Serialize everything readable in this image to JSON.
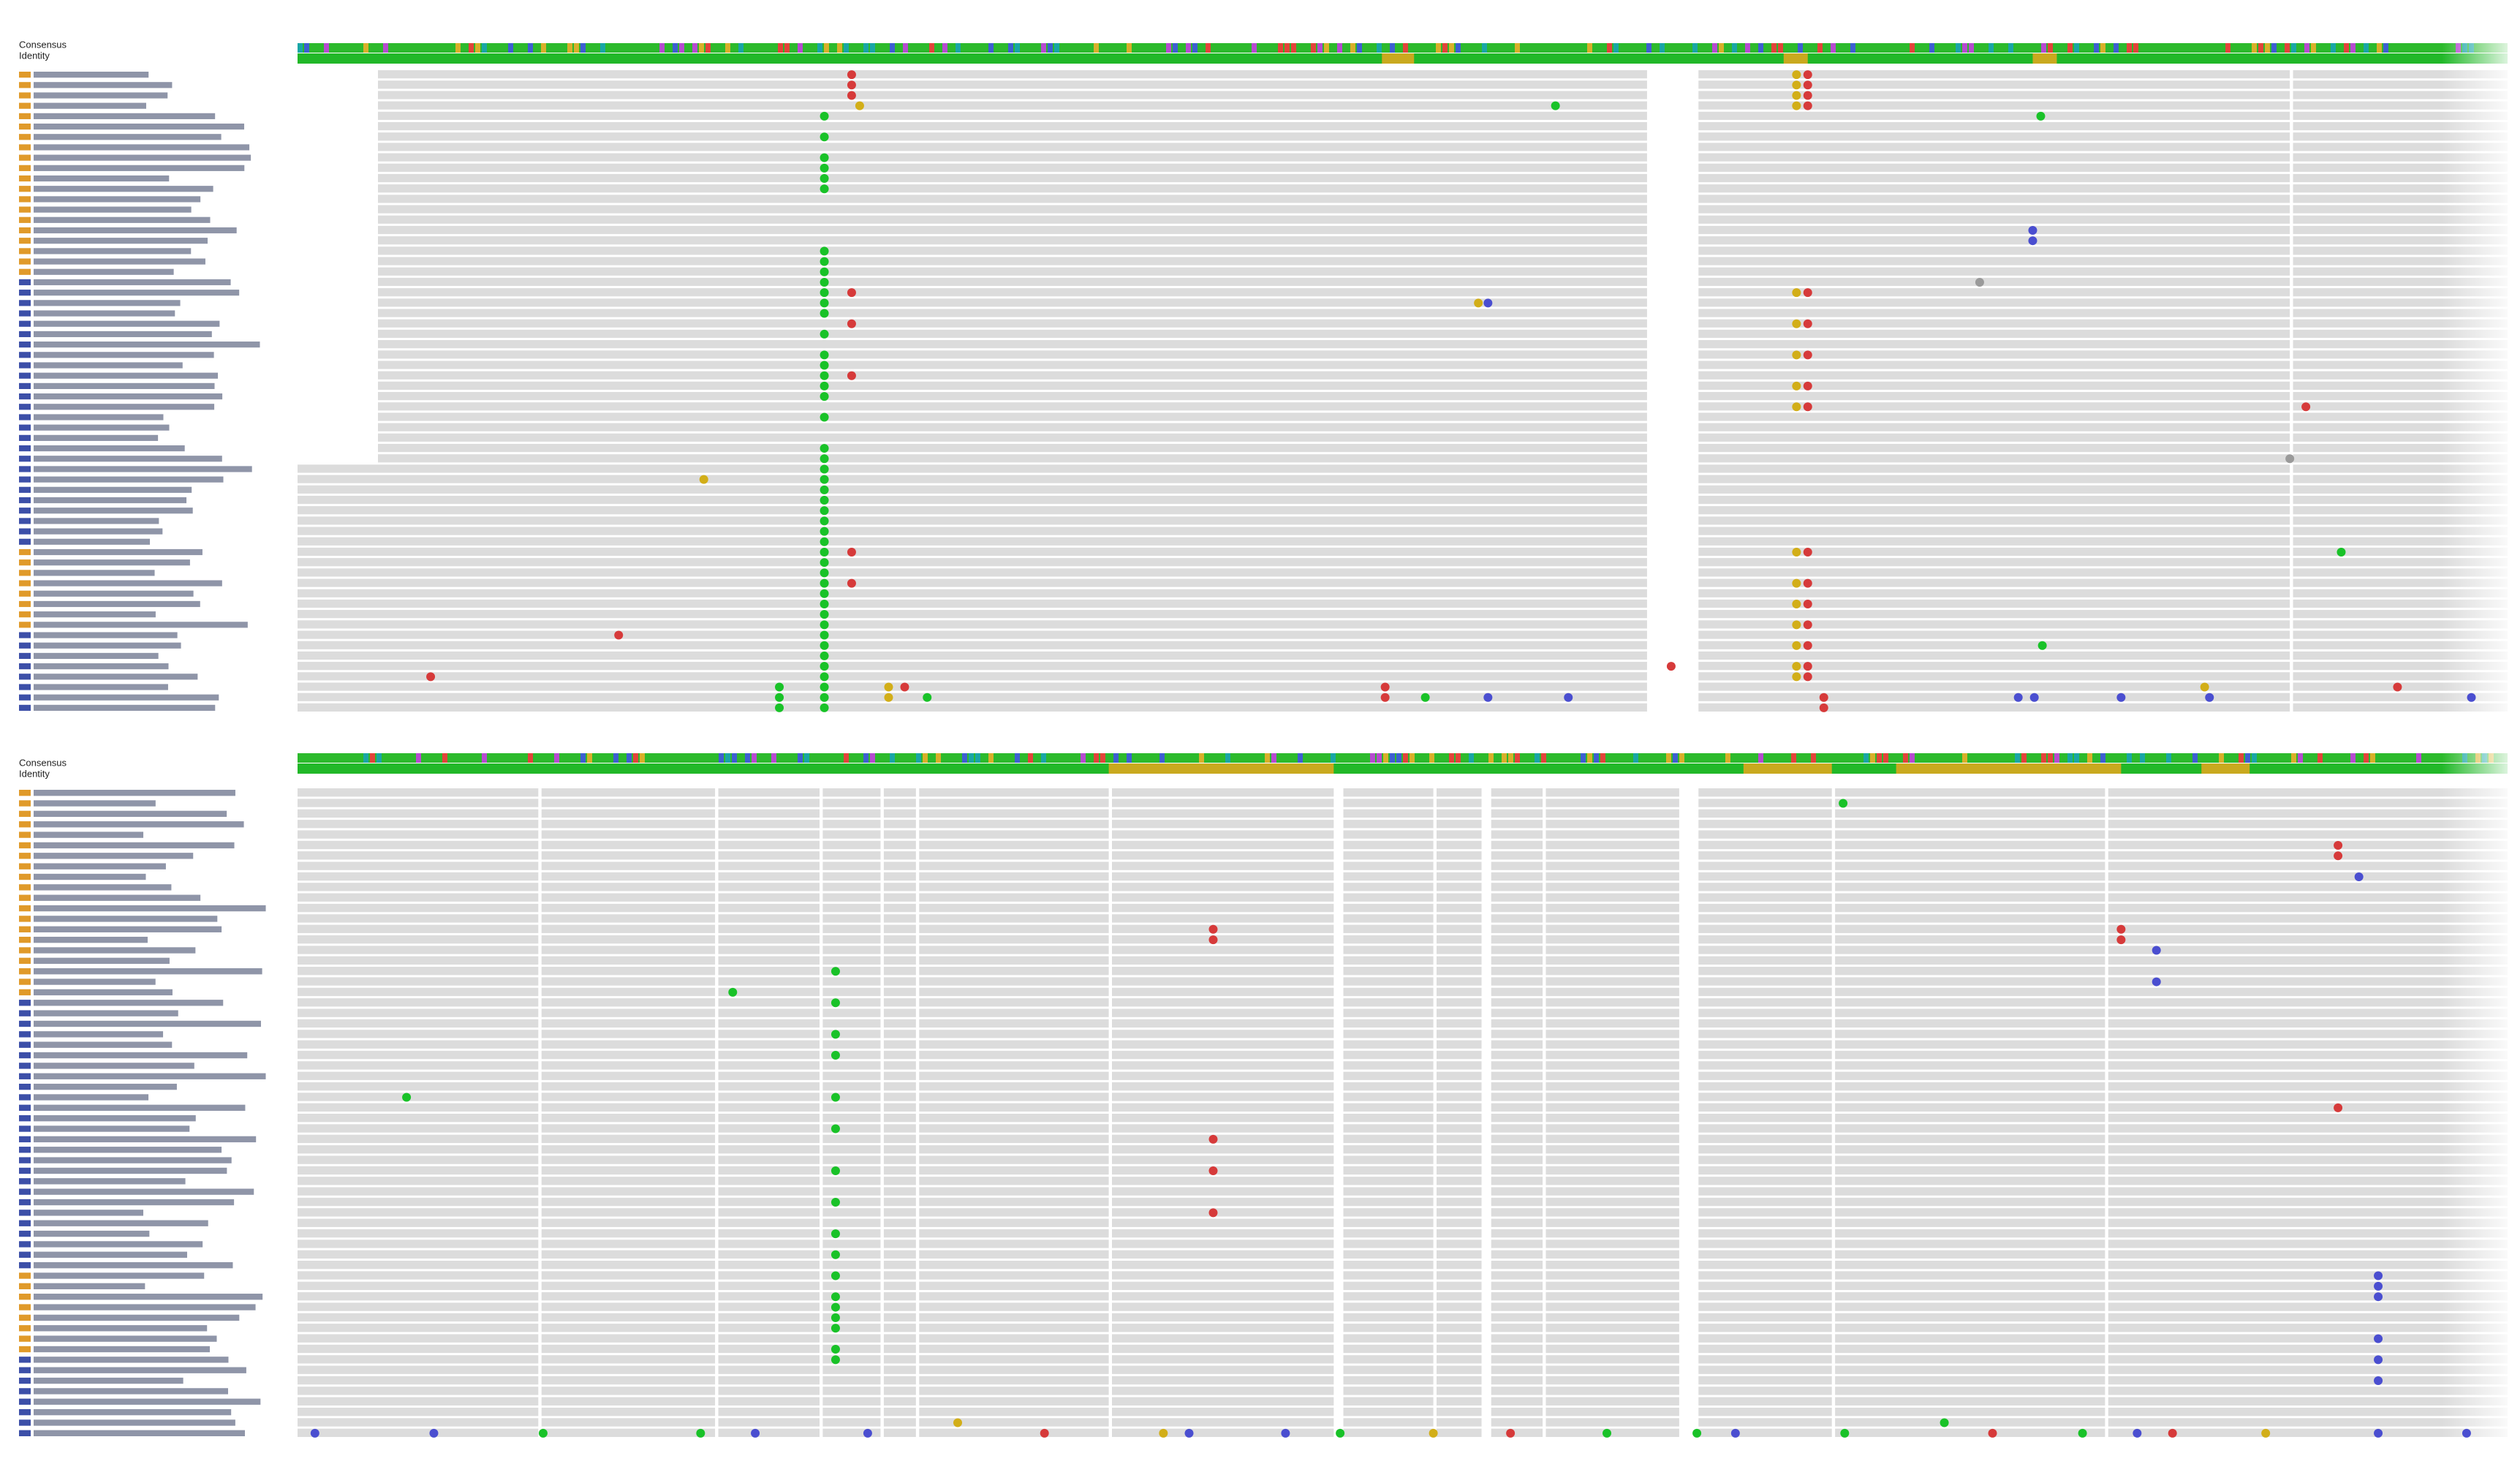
{
  "panels": [
    {
      "header": {
        "consensus": "Consensus",
        "identity": "Identity"
      }
    },
    {
      "header": {
        "consensus": "Consensus",
        "identity": "Identity"
      }
    }
  ]
}
